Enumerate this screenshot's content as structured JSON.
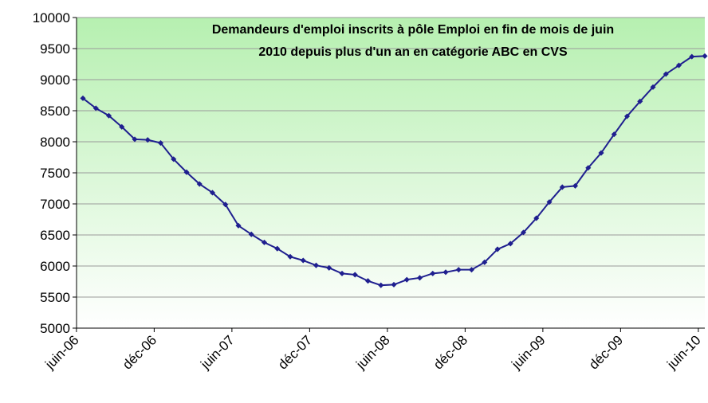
{
  "chart_data": {
    "type": "line",
    "title": [
      "Demandeurs d'emploi inscrits à pôle Emploi en fin de mois de juin",
      "2010 depuis plus d'un an en catégorie ABC en CVS"
    ],
    "categories": [
      "juin-06",
      null,
      null,
      null,
      null,
      null,
      "déc-06",
      null,
      null,
      null,
      null,
      null,
      "juin-07",
      null,
      null,
      null,
      null,
      null,
      "déc-07",
      null,
      null,
      null,
      null,
      null,
      "juin-08",
      null,
      null,
      null,
      null,
      null,
      "déc-08",
      null,
      null,
      null,
      null,
      null,
      "juin-09",
      null,
      null,
      null,
      null,
      null,
      "déc-09",
      null,
      null,
      null,
      null,
      null,
      "juin-10"
    ],
    "series": [
      {
        "name": "Demandeurs d'emploi",
        "color": "#1f1f8f",
        "values": [
          8700,
          8540,
          8420,
          8240,
          8040,
          8030,
          7980,
          7720,
          7510,
          7320,
          7180,
          6990,
          6650,
          6510,
          6380,
          6280,
          6150,
          6090,
          6010,
          5970,
          5880,
          5860,
          5760,
          5690,
          5700,
          5780,
          5810,
          5880,
          5900,
          5940,
          5940,
          6060,
          6270,
          6360,
          6540,
          6770,
          7030,
          7270,
          7290,
          7580,
          7820,
          8120,
          8410,
          8650,
          8880,
          9090,
          9230,
          9370,
          9380
        ]
      }
    ],
    "ylim": [
      5000,
      10000
    ],
    "yticks": [
      5000,
      5500,
      6000,
      6500,
      7000,
      7500,
      8000,
      8500,
      9000,
      9500,
      10000
    ],
    "grid": true
  }
}
